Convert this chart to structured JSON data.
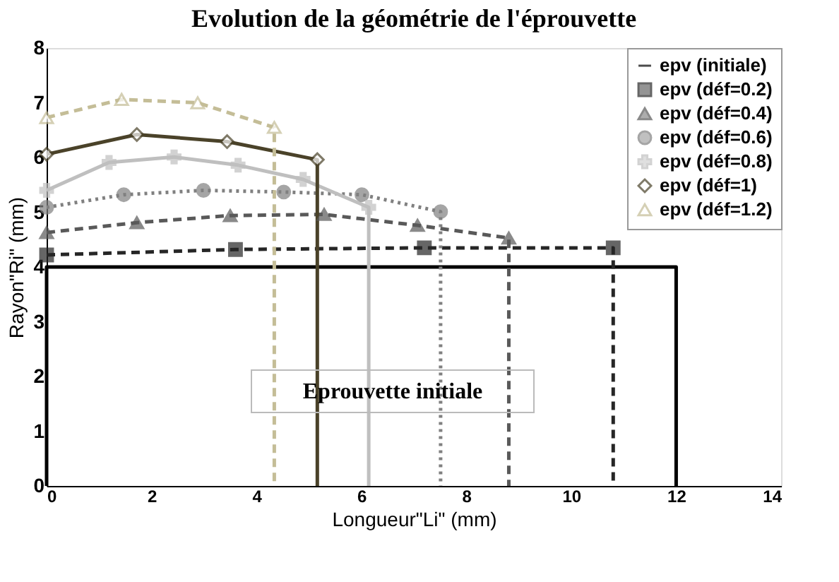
{
  "chart_data": {
    "type": "line",
    "title": "Evolution de la géométrie de l'éprouvette",
    "xlabel": "Longueur\"Li\" (mm)",
    "ylabel": "Rayon\"Ri\" (mm)",
    "xlim": [
      0,
      14
    ],
    "xticks": [
      0,
      2,
      4,
      6,
      8,
      10,
      12,
      14
    ],
    "ylim": [
      0,
      8
    ],
    "yticks": [
      0,
      1,
      2,
      3,
      4,
      5,
      6,
      7,
      8
    ],
    "grid": false,
    "legend": "top right",
    "annotations": [
      "Eprouvette initiale"
    ],
    "series": [
      {
        "name": "epv (initiale)",
        "color": "#000000",
        "marker": "none",
        "line_style": "solid",
        "x": [
          0,
          0,
          12,
          12
        ],
        "values": [
          0,
          4,
          4,
          0
        ]
      },
      {
        "name": "epv (déf=0.2)",
        "color": "#262626",
        "marker": "square",
        "line_style": "dashed",
        "x": [
          0,
          3.6,
          7.2,
          10.8,
          10.8
        ],
        "values": [
          4.22,
          4.32,
          4.35,
          4.35,
          0
        ]
      },
      {
        "name": "epv (déf=0.4)",
        "color": "#595959",
        "marker": "triangle",
        "line_style": "dashed",
        "x": [
          0,
          1.72,
          3.5,
          5.29,
          7.07,
          8.81,
          8.81
        ],
        "values": [
          4.63,
          4.81,
          4.94,
          4.96,
          4.76,
          4.53,
          0
        ]
      },
      {
        "name": "epv (déf=0.6)",
        "color": "#808080",
        "marker": "circle",
        "line_style": "dotted",
        "x": [
          0,
          1.47,
          2.99,
          4.52,
          6.01,
          7.51,
          7.51
        ],
        "values": [
          5.09,
          5.32,
          5.4,
          5.37,
          5.32,
          5.01,
          0
        ]
      },
      {
        "name": "epv (déf=0.8)",
        "color": "#bfbfbf",
        "marker": "cross",
        "line_style": "solid",
        "x": [
          0,
          1.19,
          2.43,
          3.65,
          4.89,
          6.14,
          6.14
        ],
        "values": [
          5.4,
          5.91,
          6.01,
          5.86,
          5.6,
          5.09,
          0
        ]
      },
      {
        "name": "epv (déf=1)",
        "color": "#4a4229",
        "marker": "diamond",
        "line_style": "solid",
        "x": [
          0,
          1.72,
          3.44,
          5.16,
          5.16
        ],
        "values": [
          6.06,
          6.42,
          6.29,
          5.96,
          0
        ]
      },
      {
        "name": "epv (déf=1.2)",
        "color": "#c4bd97",
        "marker": "triangle",
        "line_style": "dashed",
        "x": [
          0,
          1.43,
          2.88,
          4.34,
          4.34
        ],
        "values": [
          6.73,
          7.06,
          7.0,
          6.55,
          0
        ]
      }
    ]
  }
}
